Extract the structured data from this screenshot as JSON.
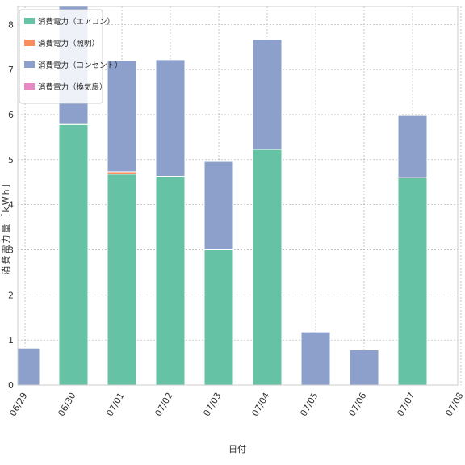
{
  "chart_data": {
    "type": "bar",
    "stacked": true,
    "categories": [
      "06/29",
      "06/30",
      "07/01",
      "07/02",
      "07/03",
      "07/04",
      "07/05",
      "07/06",
      "07/07",
      "07/08"
    ],
    "series": [
      {
        "name": "消費電力（エアコン）",
        "color": "#66c2a5",
        "values": [
          0,
          5.78,
          4.68,
          4.63,
          3.0,
          5.23,
          0,
          0,
          4.6,
          0
        ]
      },
      {
        "name": "消費電力（照明）",
        "color": "#fc8d62",
        "values": [
          0,
          0.02,
          0.05,
          0,
          0,
          0,
          0,
          0,
          0,
          0
        ]
      },
      {
        "name": "消費電力（コンセント）",
        "color": "#8da0cb",
        "values": [
          0.82,
          2.62,
          2.47,
          2.59,
          1.96,
          2.44,
          1.18,
          0.78,
          1.38,
          0
        ]
      },
      {
        "name": "消費電力（換気扇）",
        "color": "#e78ac3",
        "values": [
          0,
          0,
          0,
          0,
          0,
          0,
          0,
          0,
          0,
          0
        ]
      }
    ],
    "xlabel": "日付",
    "ylabel": "消費電力量［kWh］",
    "ylim": [
      0,
      8.4
    ],
    "yticks": [
      0,
      1,
      2,
      3,
      4,
      5,
      6,
      7,
      8
    ],
    "grid": true,
    "legend": "top-left"
  }
}
